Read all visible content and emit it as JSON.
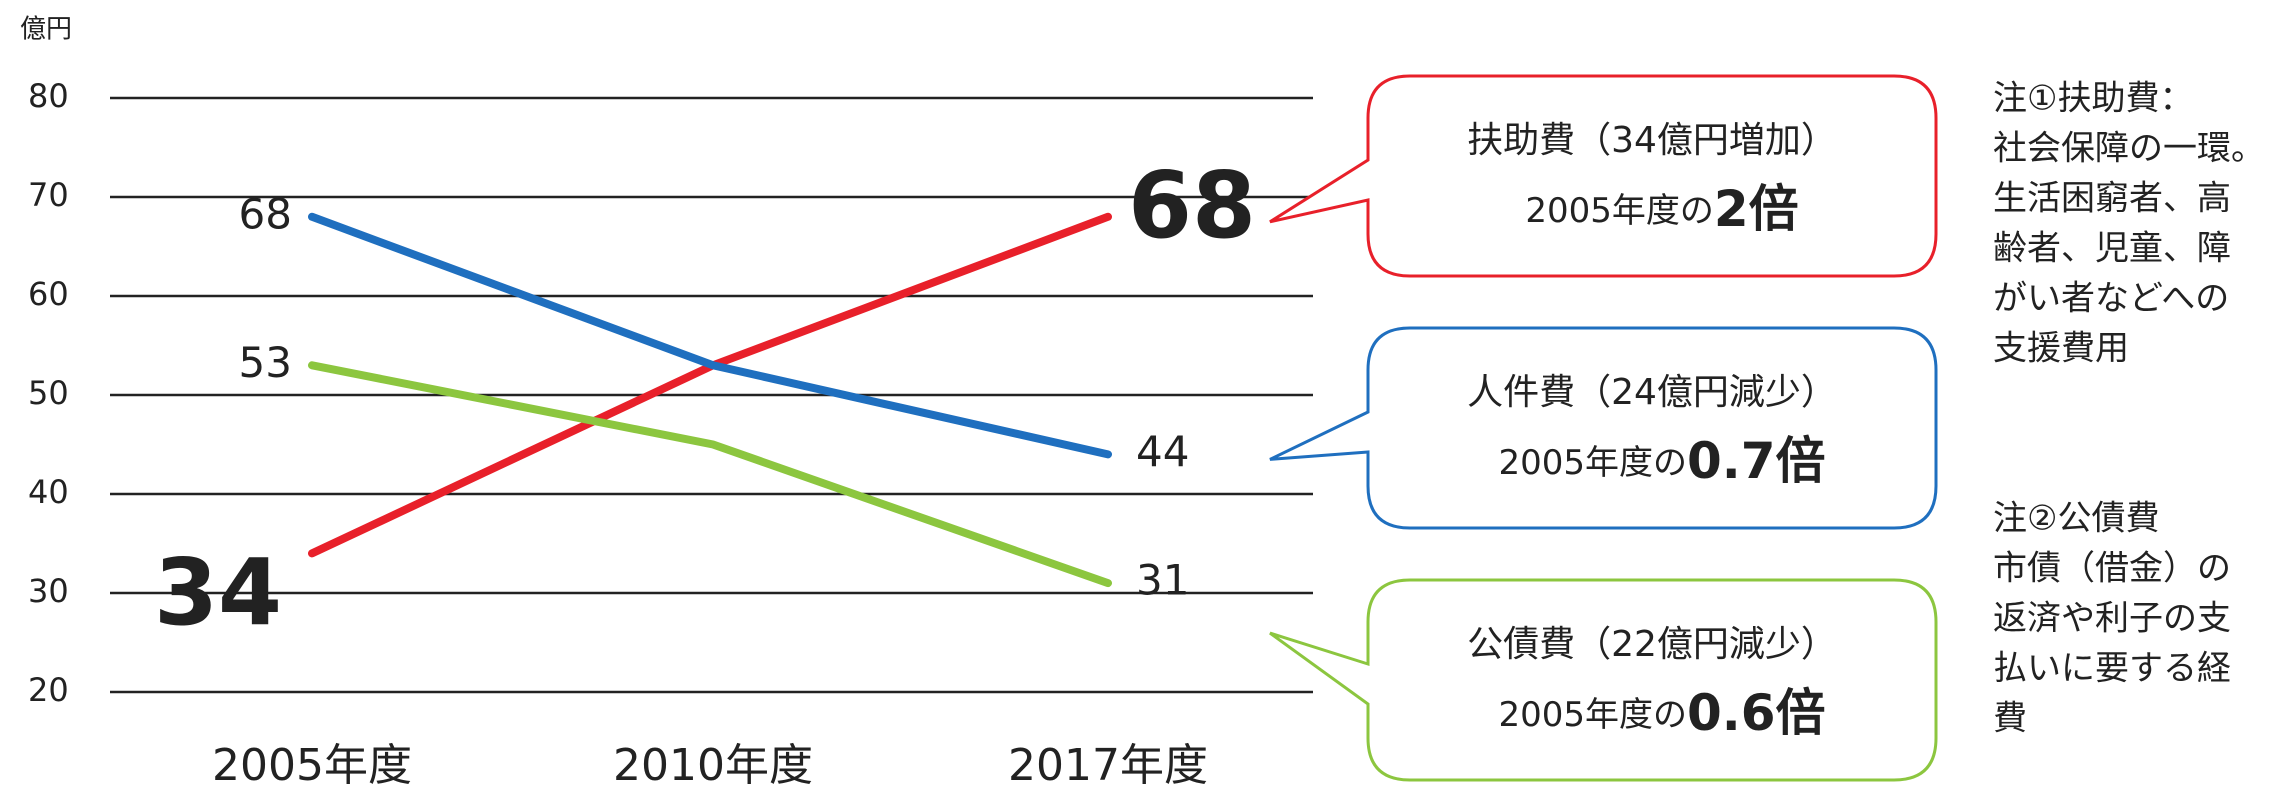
{
  "chart_data": {
    "type": "line",
    "y_unit": "億円",
    "categories": [
      "2005年度",
      "2010年度",
      "2017年度"
    ],
    "ylim": [
      20,
      80
    ],
    "yticks": [
      20,
      30,
      40,
      50,
      60,
      70,
      80
    ],
    "grid": true,
    "series": [
      {
        "color": "#e8202a",
        "values": [
          34,
          53,
          68
        ],
        "value_labels": [
          "34",
          null,
          "68"
        ],
        "emphasis": true,
        "callout": {
          "title": "扶助費（34億円増加）",
          "prefix": "2005年度の",
          "ratio": "2倍"
        }
      },
      {
        "color": "#1f6fbf",
        "values": [
          68,
          53,
          44
        ],
        "value_labels": [
          "68",
          null,
          "44"
        ],
        "emphasis": false,
        "callout": {
          "title": "人件費（24億円減少）",
          "prefix": "2005年度の",
          "ratio": "0.7倍"
        }
      },
      {
        "color": "#8cc63f",
        "values": [
          53,
          45,
          31
        ],
        "value_labels": [
          "53",
          null,
          "31"
        ],
        "emphasis": false,
        "callout": {
          "title": "公債費（22億円減少）",
          "prefix": "2005年度の",
          "ratio": "0.6倍"
        }
      }
    ],
    "notes": [
      [
        "注①扶助費：",
        "社会保障の一環。",
        "生活困窮者、高",
        "齢者、児童、障",
        "がい者などへの",
        "支援費用"
      ],
      [
        "注②公債費",
        "市債（借金）の",
        "返済や利子の支",
        "払いに要する経",
        "費"
      ]
    ]
  }
}
